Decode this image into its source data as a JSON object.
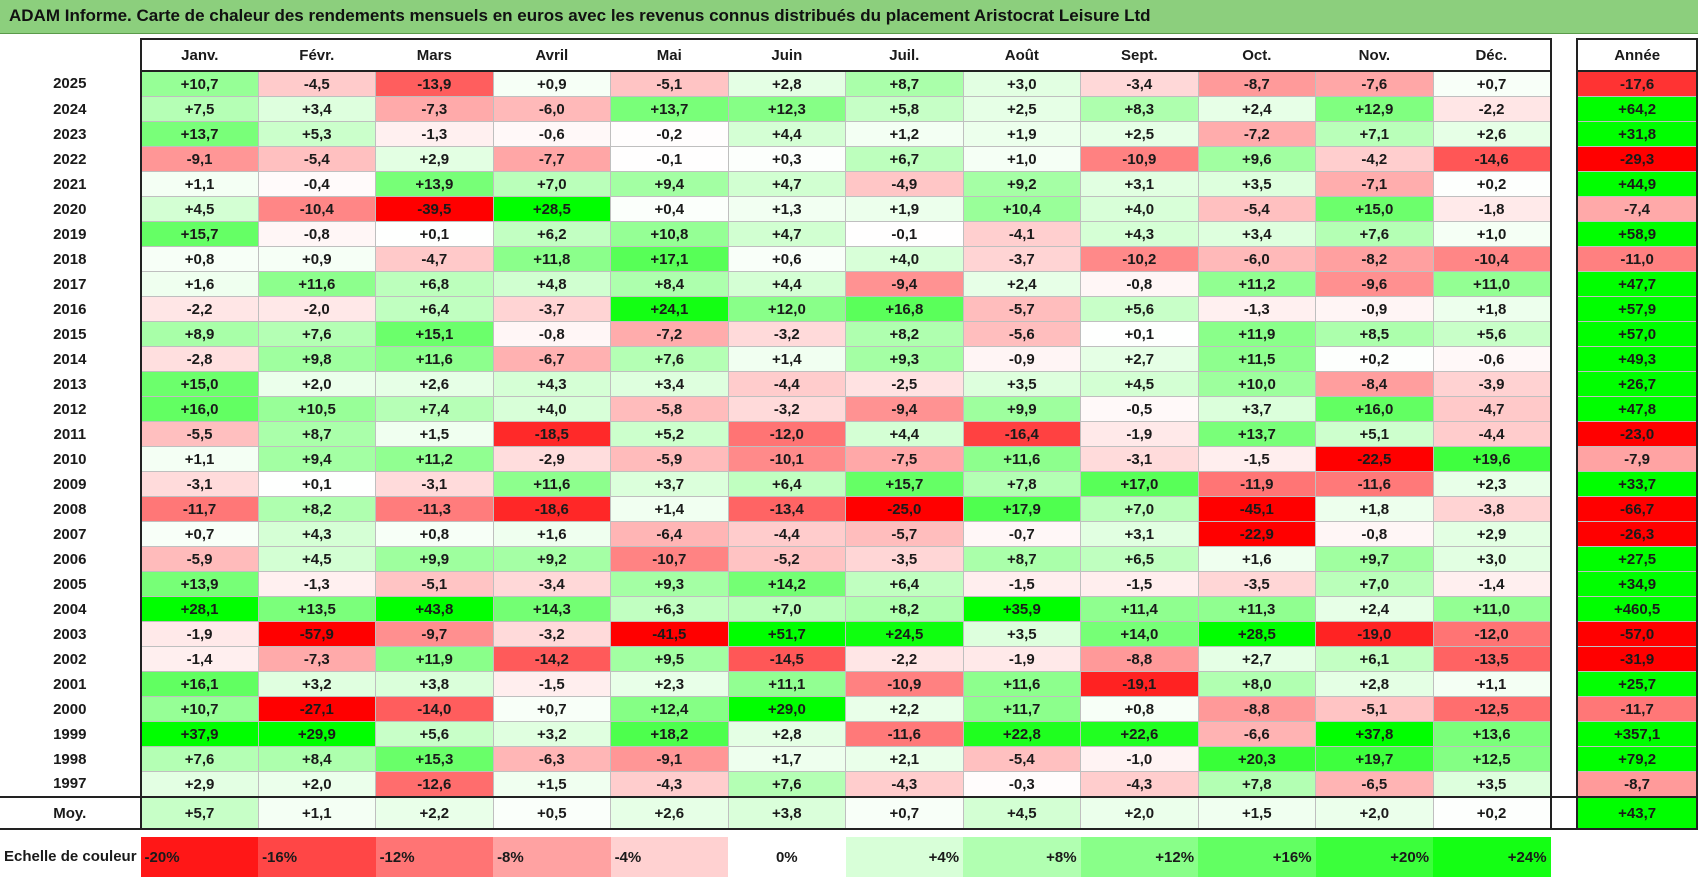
{
  "title": "ADAM Informe. Carte de chaleur des rendements mensuels en euros avec les revenus connus distribués du placement Aristocrat Leisure Ltd",
  "chart_data": {
    "type": "heatmap",
    "title": "ADAM Informe. Carte de chaleur des rendements mensuels en euros avec les revenus connus distribués du placement Aristocrat Leisure Ltd",
    "columns": [
      "Janv.",
      "Févr.",
      "Mars",
      "Avril",
      "Mai",
      "Juin",
      "Juil.",
      "Août",
      "Sept.",
      "Oct.",
      "Nov.",
      "Déc."
    ],
    "year_header": "Année",
    "rows": [
      {
        "label": "2025",
        "values": [
          "+10,7",
          "-4,5",
          "-13,9",
          "+0,9",
          "-5,1",
          "+2,8",
          "+8,7",
          "+3,0",
          "-3,4",
          "-8,7",
          "-7,6",
          "+0,7"
        ],
        "year": "-17,6"
      },
      {
        "label": "2024",
        "values": [
          "+7,5",
          "+3,4",
          "-7,3",
          "-6,0",
          "+13,7",
          "+12,3",
          "+5,8",
          "+2,5",
          "+8,3",
          "+2,4",
          "+12,9",
          "-2,2"
        ],
        "year": "+64,2"
      },
      {
        "label": "2023",
        "values": [
          "+13,7",
          "+5,3",
          "-1,3",
          "-0,6",
          "-0,2",
          "+4,4",
          "+1,2",
          "+1,9",
          "+2,5",
          "-7,2",
          "+7,1",
          "+2,6"
        ],
        "year": "+31,8"
      },
      {
        "label": "2022",
        "values": [
          "-9,1",
          "-5,4",
          "+2,9",
          "-7,7",
          "-0,1",
          "+0,3",
          "+6,7",
          "+1,0",
          "-10,9",
          "+9,6",
          "-4,2",
          "-14,6"
        ],
        "year": "-29,3"
      },
      {
        "label": "2021",
        "values": [
          "+1,1",
          "-0,4",
          "+13,9",
          "+7,0",
          "+9,4",
          "+4,7",
          "-4,9",
          "+9,2",
          "+3,1",
          "+3,5",
          "-7,1",
          "+0,2"
        ],
        "year": "+44,9"
      },
      {
        "label": "2020",
        "values": [
          "+4,5",
          "-10,4",
          "-39,5",
          "+28,5",
          "+0,4",
          "+1,3",
          "+1,9",
          "+10,4",
          "+4,0",
          "-5,4",
          "+15,0",
          "-1,8"
        ],
        "year": "-7,4"
      },
      {
        "label": "2019",
        "values": [
          "+15,7",
          "-0,8",
          "+0,1",
          "+6,2",
          "+10,8",
          "+4,7",
          "-0,1",
          "-4,1",
          "+4,3",
          "+3,4",
          "+7,6",
          "+1,0"
        ],
        "year": "+58,9"
      },
      {
        "label": "2018",
        "values": [
          "+0,8",
          "+0,9",
          "-4,7",
          "+11,8",
          "+17,1",
          "+0,6",
          "+4,0",
          "-3,7",
          "-10,2",
          "-6,0",
          "-8,2",
          "-10,4"
        ],
        "year": "-11,0"
      },
      {
        "label": "2017",
        "values": [
          "+1,6",
          "+11,6",
          "+6,8",
          "+4,8",
          "+8,4",
          "+4,4",
          "-9,4",
          "+2,4",
          "-0,8",
          "+11,2",
          "-9,6",
          "+11,0"
        ],
        "year": "+47,7"
      },
      {
        "label": "2016",
        "values": [
          "-2,2",
          "-2,0",
          "+6,4",
          "-3,7",
          "+24,1",
          "+12,0",
          "+16,8",
          "-5,7",
          "+5,6",
          "-1,3",
          "-0,9",
          "+1,8"
        ],
        "year": "+57,9"
      },
      {
        "label": "2015",
        "values": [
          "+8,9",
          "+7,6",
          "+15,1",
          "-0,8",
          "-7,2",
          "-3,2",
          "+8,2",
          "-5,6",
          "+0,1",
          "+11,9",
          "+8,5",
          "+5,6"
        ],
        "year": "+57,0"
      },
      {
        "label": "2014",
        "values": [
          "-2,8",
          "+9,8",
          "+11,6",
          "-6,7",
          "+7,6",
          "+1,4",
          "+9,3",
          "-0,9",
          "+2,7",
          "+11,5",
          "+0,2",
          "-0,6"
        ],
        "year": "+49,3"
      },
      {
        "label": "2013",
        "values": [
          "+15,0",
          "+2,0",
          "+2,6",
          "+4,3",
          "+3,4",
          "-4,4",
          "-2,5",
          "+3,5",
          "+4,5",
          "+10,0",
          "-8,4",
          "-3,9"
        ],
        "year": "+26,7"
      },
      {
        "label": "2012",
        "values": [
          "+16,0",
          "+10,5",
          "+7,4",
          "+4,0",
          "-5,8",
          "-3,2",
          "-9,4",
          "+9,9",
          "-0,5",
          "+3,7",
          "+16,0",
          "-4,7"
        ],
        "year": "+47,8"
      },
      {
        "label": "2011",
        "values": [
          "-5,5",
          "+8,7",
          "+1,5",
          "-18,5",
          "+5,2",
          "-12,0",
          "+4,4",
          "-16,4",
          "-1,9",
          "+13,7",
          "+5,1",
          "-4,4"
        ],
        "year": "-23,0"
      },
      {
        "label": "2010",
        "values": [
          "+1,1",
          "+9,4",
          "+11,2",
          "-2,9",
          "-5,9",
          "-10,1",
          "-7,5",
          "+11,6",
          "-3,1",
          "-1,5",
          "-22,5",
          "+19,6"
        ],
        "year": "-7,9"
      },
      {
        "label": "2009",
        "values": [
          "-3,1",
          "+0,1",
          "-3,1",
          "+11,6",
          "+3,7",
          "+6,4",
          "+15,7",
          "+7,8",
          "+17,0",
          "-11,9",
          "-11,6",
          "+2,3"
        ],
        "year": "+33,7"
      },
      {
        "label": "2008",
        "values": [
          "-11,7",
          "+8,2",
          "-11,3",
          "-18,6",
          "+1,4",
          "-13,4",
          "-25,0",
          "+17,9",
          "+7,0",
          "-45,1",
          "+1,8",
          "-3,8"
        ],
        "year": "-66,7"
      },
      {
        "label": "2007",
        "values": [
          "+0,7",
          "+4,3",
          "+0,8",
          "+1,6",
          "-6,4",
          "-4,4",
          "-5,7",
          "-0,7",
          "+3,1",
          "-22,9",
          "-0,8",
          "+2,9"
        ],
        "year": "-26,3"
      },
      {
        "label": "2006",
        "values": [
          "-5,9",
          "+4,5",
          "+9,9",
          "+9,2",
          "-10,7",
          "-5,2",
          "-3,5",
          "+8,7",
          "+6,5",
          "+1,6",
          "+9,7",
          "+3,0"
        ],
        "year": "+27,5"
      },
      {
        "label": "2005",
        "values": [
          "+13,9",
          "-1,3",
          "-5,1",
          "-3,4",
          "+9,3",
          "+14,2",
          "+6,4",
          "-1,5",
          "-1,5",
          "-3,5",
          "+7,0",
          "-1,4"
        ],
        "year": "+34,9"
      },
      {
        "label": "2004",
        "values": [
          "+28,1",
          "+13,5",
          "+43,8",
          "+14,3",
          "+6,3",
          "+7,0",
          "+8,2",
          "+35,9",
          "+11,4",
          "+11,3",
          "+2,4",
          "+11,0"
        ],
        "year": "+460,5"
      },
      {
        "label": "2003",
        "values": [
          "-1,9",
          "-57,9",
          "-9,7",
          "-3,2",
          "-41,5",
          "+51,7",
          "+24,5",
          "+3,5",
          "+14,0",
          "+28,5",
          "-19,0",
          "-12,0"
        ],
        "year": "-57,0"
      },
      {
        "label": "2002",
        "values": [
          "-1,4",
          "-7,3",
          "+11,9",
          "-14,2",
          "+9,5",
          "-14,5",
          "-2,2",
          "-1,9",
          "-8,8",
          "+2,7",
          "+6,1",
          "-13,5"
        ],
        "year": "-31,9"
      },
      {
        "label": "2001",
        "values": [
          "+16,1",
          "+3,2",
          "+3,8",
          "-1,5",
          "+2,3",
          "+11,1",
          "-10,9",
          "+11,6",
          "-19,1",
          "+8,0",
          "+2,8",
          "+1,1"
        ],
        "year": "+25,7"
      },
      {
        "label": "2000",
        "values": [
          "+10,7",
          "-27,1",
          "-14,0",
          "+0,7",
          "+12,4",
          "+29,0",
          "+2,2",
          "+11,7",
          "+0,8",
          "-8,8",
          "-5,1",
          "-12,5"
        ],
        "year": "-11,7"
      },
      {
        "label": "1999",
        "values": [
          "+37,9",
          "+29,9",
          "+5,6",
          "+3,2",
          "+18,2",
          "+2,8",
          "-11,6",
          "+22,8",
          "+22,6",
          "-6,6",
          "+37,8",
          "+13,6"
        ],
        "year": "+357,1"
      },
      {
        "label": "1998",
        "values": [
          "+7,6",
          "+8,4",
          "+15,3",
          "-6,3",
          "-9,1",
          "+1,7",
          "+2,1",
          "-5,4",
          "-1,0",
          "+20,3",
          "+19,7",
          "+12,5"
        ],
        "year": "+79,2"
      },
      {
        "label": "1997",
        "values": [
          "+2,9",
          "+2,0",
          "-12,6",
          "+1,5",
          "-4,3",
          "+7,6",
          "-4,3",
          "-0,3",
          "-4,3",
          "+7,8",
          "-6,5",
          "+3,5"
        ],
        "year": "-8,7"
      }
    ],
    "average": {
      "label": "Moy.",
      "values": [
        "+5,7",
        "+1,1",
        "+2,2",
        "+0,5",
        "+2,6",
        "+3,8",
        "+0,7",
        "+4,5",
        "+2,0",
        "+1,5",
        "+2,0",
        "+0,2"
      ],
      "year": "+43,7"
    },
    "color_scale": {
      "label": "Echelle de couleur",
      "steps": [
        "-20%",
        "-16%",
        "-12%",
        "-8%",
        "-4%",
        "0%",
        "+4%",
        "+8%",
        "+12%",
        "+16%",
        "+20%",
        "+24%"
      ],
      "step_values": [
        -20,
        -16,
        -12,
        -8,
        -4,
        0,
        4,
        8,
        12,
        16,
        20,
        24
      ],
      "negative_color": "#ff0000",
      "neutral_color": "#ffffff",
      "positive_color": "#00ff00"
    }
  }
}
